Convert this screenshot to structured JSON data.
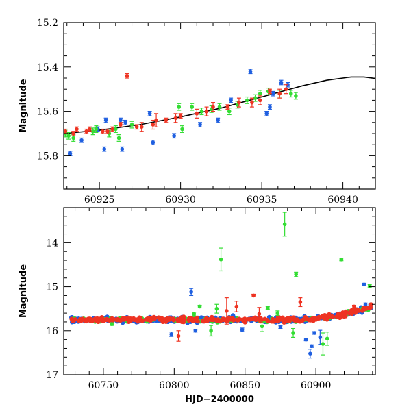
{
  "chart_data": [
    {
      "type": "scatter",
      "ylabel": "Magnitude",
      "xlabel": "",
      "xlim": [
        60922.8,
        60942
      ],
      "ylim": [
        15.95,
        15.2
      ],
      "y_inverted": true,
      "xticks": [
        "60925",
        "60930",
        "60935",
        "60940"
      ],
      "yticks": [
        "15.2",
        "15.4",
        "15.6",
        "15.8"
      ],
      "series": [
        {
          "color": "#1f5fe0",
          "points": [
            {
              "x": 60923.2,
              "y": 15.79,
              "e": 0.01
            },
            {
              "x": 60923.9,
              "y": 15.73,
              "e": 0.01
            },
            {
              "x": 60924.9,
              "y": 15.68,
              "e": 0.01
            },
            {
              "x": 60925.3,
              "y": 15.77,
              "e": 0.01
            },
            {
              "x": 60925.4,
              "y": 15.64,
              "e": 0.01
            },
            {
              "x": 60926.3,
              "y": 15.64,
              "e": 0.01
            },
            {
              "x": 60926.4,
              "y": 15.77,
              "e": 0.01
            },
            {
              "x": 60926.6,
              "y": 15.65,
              "e": 0.01
            },
            {
              "x": 60928.1,
              "y": 15.61,
              "e": 0.01
            },
            {
              "x": 60928.3,
              "y": 15.74,
              "e": 0.01
            },
            {
              "x": 60929.6,
              "y": 15.71,
              "e": 0.01
            },
            {
              "x": 60931.2,
              "y": 15.66,
              "e": 0.01
            },
            {
              "x": 60932.3,
              "y": 15.64,
              "e": 0.01
            },
            {
              "x": 60933.1,
              "y": 15.55,
              "e": 0.01
            },
            {
              "x": 60934.3,
              "y": 15.42,
              "e": 0.01
            },
            {
              "x": 60935.3,
              "y": 15.61,
              "e": 0.01
            },
            {
              "x": 60935.5,
              "y": 15.58,
              "e": 0.01
            },
            {
              "x": 60936.2,
              "y": 15.47,
              "e": 0.01
            },
            {
              "x": 60936.6,
              "y": 15.48,
              "e": 0.01
            },
            {
              "x": 60935.7,
              "y": 15.52,
              "e": 0.01
            }
          ]
        },
        {
          "color": "#33dd33",
          "points": [
            {
              "x": 60922.9,
              "y": 15.7,
              "e": 0.015
            },
            {
              "x": 60923.1,
              "y": 15.71,
              "e": 0.015
            },
            {
              "x": 60923.4,
              "y": 15.72,
              "e": 0.015
            },
            {
              "x": 60924.6,
              "y": 15.69,
              "e": 0.015
            },
            {
              "x": 60924.8,
              "y": 15.68,
              "e": 0.015
            },
            {
              "x": 60925.6,
              "y": 15.7,
              "e": 0.015
            },
            {
              "x": 60926.0,
              "y": 15.68,
              "e": 0.015
            },
            {
              "x": 60926.2,
              "y": 15.72,
              "e": 0.015
            },
            {
              "x": 60927.0,
              "y": 15.66,
              "e": 0.015
            },
            {
              "x": 60929.9,
              "y": 15.58,
              "e": 0.015
            },
            {
              "x": 60930.1,
              "y": 15.68,
              "e": 0.015
            },
            {
              "x": 60930.7,
              "y": 15.58,
              "e": 0.015
            },
            {
              "x": 60931.3,
              "y": 15.6,
              "e": 0.015
            },
            {
              "x": 60931.9,
              "y": 15.59,
              "e": 0.015
            },
            {
              "x": 60932.4,
              "y": 15.58,
              "e": 0.015
            },
            {
              "x": 60933.0,
              "y": 15.6,
              "e": 0.015
            },
            {
              "x": 60933.5,
              "y": 15.57,
              "e": 0.015
            },
            {
              "x": 60934.1,
              "y": 15.55,
              "e": 0.015
            },
            {
              "x": 60934.6,
              "y": 15.54,
              "e": 0.015
            },
            {
              "x": 60934.9,
              "y": 15.52,
              "e": 0.015
            },
            {
              "x": 60935.4,
              "y": 15.51,
              "e": 0.015
            },
            {
              "x": 60936.1,
              "y": 15.52,
              "e": 0.015
            },
            {
              "x": 60936.8,
              "y": 15.52,
              "e": 0.015
            },
            {
              "x": 60937.1,
              "y": 15.53,
              "e": 0.015
            }
          ]
        },
        {
          "color": "#ee3322",
          "points": [
            {
              "x": 60922.9,
              "y": 15.69,
              "e": 0.01
            },
            {
              "x": 60923.4,
              "y": 15.7,
              "e": 0.01
            },
            {
              "x": 60923.6,
              "y": 15.68,
              "e": 0.01
            },
            {
              "x": 60924.2,
              "y": 15.69,
              "e": 0.01
            },
            {
              "x": 60924.4,
              "y": 15.68,
              "e": 0.01
            },
            {
              "x": 60925.2,
              "y": 15.69,
              "e": 0.01
            },
            {
              "x": 60925.5,
              "y": 15.69,
              "e": 0.01
            },
            {
              "x": 60925.8,
              "y": 15.68,
              "e": 0.01
            },
            {
              "x": 60926.3,
              "y": 15.66,
              "e": 0.01
            },
            {
              "x": 60926.7,
              "y": 15.44,
              "e": 0.01
            },
            {
              "x": 60927.3,
              "y": 15.67,
              "e": 0.01
            },
            {
              "x": 60927.6,
              "y": 15.67,
              "e": 0.02
            },
            {
              "x": 60928.3,
              "y": 15.66,
              "e": 0.02
            },
            {
              "x": 60928.5,
              "y": 15.64,
              "e": 0.03
            },
            {
              "x": 60929.1,
              "y": 15.64,
              "e": 0.01
            },
            {
              "x": 60929.7,
              "y": 15.63,
              "e": 0.02
            },
            {
              "x": 60930.0,
              "y": 15.62,
              "e": 0.01
            },
            {
              "x": 60931.0,
              "y": 15.61,
              "e": 0.02
            },
            {
              "x": 60931.6,
              "y": 15.6,
              "e": 0.02
            },
            {
              "x": 60932.0,
              "y": 15.58,
              "e": 0.02
            },
            {
              "x": 60932.9,
              "y": 15.58,
              "e": 0.01
            },
            {
              "x": 60933.6,
              "y": 15.56,
              "e": 0.02
            },
            {
              "x": 60934.4,
              "y": 15.56,
              "e": 0.02
            },
            {
              "x": 60934.9,
              "y": 15.55,
              "e": 0.02
            },
            {
              "x": 60935.5,
              "y": 15.51,
              "e": 0.01
            },
            {
              "x": 60936.1,
              "y": 15.52,
              "e": 0.02
            },
            {
              "x": 60936.5,
              "y": 15.5,
              "e": 0.02
            }
          ]
        }
      ],
      "model_curve": [
        [
          60922.8,
          15.7
        ],
        [
          60925,
          15.685
        ],
        [
          60927.5,
          15.66
        ],
        [
          60930,
          15.625
        ],
        [
          60932.5,
          15.585
        ],
        [
          60935,
          15.535
        ],
        [
          60937.5,
          15.485
        ],
        [
          60939,
          15.46
        ],
        [
          60940.5,
          15.445
        ],
        [
          60941.3,
          15.445
        ],
        [
          60942,
          15.452
        ]
      ]
    },
    {
      "type": "scatter",
      "ylabel": "Magnitude",
      "xlabel": "HJD−2400000",
      "xlim": [
        60722,
        60942
      ],
      "ylim": [
        17.0,
        13.2
      ],
      "y_inverted": true,
      "xticks": [
        "60750",
        "60800",
        "60850",
        "60900"
      ],
      "yticks": [
        "14",
        "15",
        "16",
        "17"
      ],
      "baseline": {
        "slope_start_x": 60890,
        "base_mag": 15.75,
        "end_mag": 15.45,
        "scatter": 0.045
      },
      "series": [
        {
          "color": "#1f5fe0",
          "points": [
            {
              "x": 60798,
              "y": 16.08,
              "e": 0.05
            },
            {
              "x": 60812,
              "y": 15.12,
              "e": 0.08
            },
            {
              "x": 60815,
              "y": 16.0,
              "e": 0.03
            },
            {
              "x": 60848,
              "y": 15.98,
              "e": 0.04
            },
            {
              "x": 60875,
              "y": 15.92,
              "e": 0.03
            },
            {
              "x": 60893,
              "y": 16.2,
              "e": 0.03
            },
            {
              "x": 60896,
              "y": 16.52,
              "e": 0.1
            },
            {
              "x": 60897,
              "y": 16.35,
              "e": 0.03
            },
            {
              "x": 60903,
              "y": 16.15,
              "e": 0.16
            },
            {
              "x": 60899,
              "y": 16.05,
              "e": 0.03
            },
            {
              "x": 60935,
              "y": 15.4,
              "e": 0.03
            },
            {
              "x": 60934,
              "y": 14.95,
              "e": 0.03
            }
          ]
        },
        {
          "color": "#33dd33",
          "points": [
            {
              "x": 60833,
              "y": 14.38,
              "e": 0.26
            },
            {
              "x": 60878,
              "y": 13.58,
              "e": 0.27
            },
            {
              "x": 60886,
              "y": 14.72,
              "e": 0.05
            },
            {
              "x": 60905,
              "y": 16.3,
              "e": 0.25
            },
            {
              "x": 60908,
              "y": 16.18,
              "e": 0.15
            },
            {
              "x": 60826,
              "y": 16.0,
              "e": 0.12
            },
            {
              "x": 60830,
              "y": 15.5,
              "e": 0.1
            },
            {
              "x": 60814,
              "y": 15.62,
              "e": 0.04
            },
            {
              "x": 60862,
              "y": 15.9,
              "e": 0.12
            },
            {
              "x": 60884,
              "y": 16.05,
              "e": 0.1
            },
            {
              "x": 60873,
              "y": 15.6,
              "e": 0.05
            },
            {
              "x": 60918,
              "y": 14.38,
              "e": 0.03
            },
            {
              "x": 60938,
              "y": 14.98,
              "e": 0.03
            },
            {
              "x": 60756,
              "y": 15.85,
              "e": 0.03
            },
            {
              "x": 60818,
              "y": 15.45,
              "e": 0.03
            },
            {
              "x": 60866,
              "y": 15.48,
              "e": 0.03
            }
          ]
        },
        {
          "color": "#ee3322",
          "points": [
            {
              "x": 60803,
              "y": 16.12,
              "e": 0.12
            },
            {
              "x": 60837,
              "y": 15.55,
              "e": 0.3
            },
            {
              "x": 60844,
              "y": 15.45,
              "e": 0.12
            },
            {
              "x": 60856,
              "y": 15.2,
              "e": 0.03
            },
            {
              "x": 60889,
              "y": 15.35,
              "e": 0.1
            },
            {
              "x": 60860,
              "y": 15.62,
              "e": 0.15
            },
            {
              "x": 60927,
              "y": 15.45,
              "e": 0.03
            },
            {
              "x": 60790,
              "y": 15.7,
              "e": 0.03
            }
          ]
        }
      ]
    }
  ]
}
